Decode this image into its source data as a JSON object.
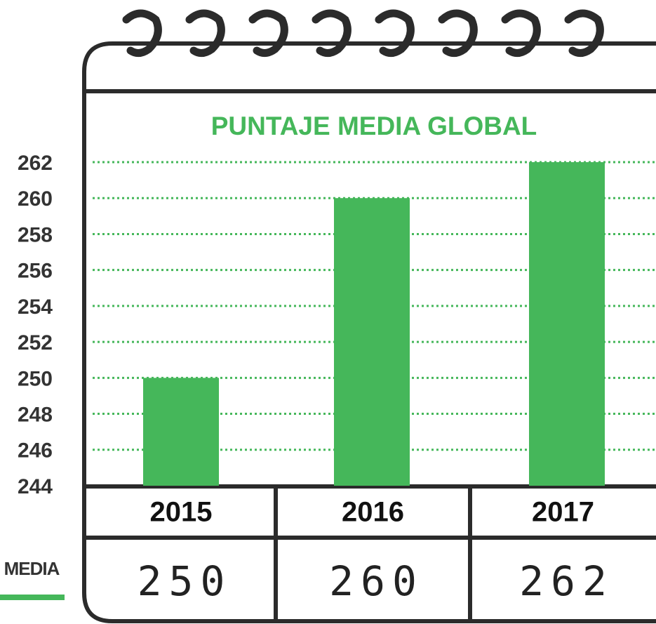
{
  "chart_data": {
    "type": "bar",
    "title": "PUNTAJE MEDIA GLOBAL",
    "categories": [
      "2015",
      "2016",
      "2017"
    ],
    "series": [
      {
        "name": "MEDIA",
        "color": "#45b75a",
        "values": [
          250,
          260,
          262
        ]
      }
    ],
    "ylim": [
      244,
      262
    ],
    "yticks": [
      244,
      246,
      248,
      250,
      252,
      254,
      256,
      258,
      260,
      262
    ],
    "grid": true
  }
}
